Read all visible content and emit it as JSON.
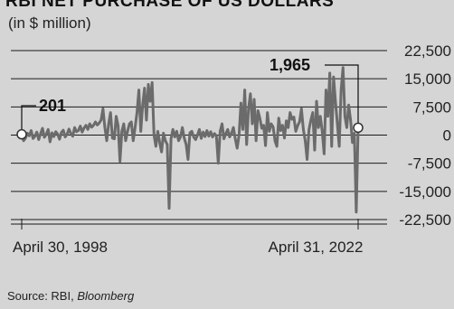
{
  "chart_data": {
    "type": "line",
    "title": "RBI NET PURCHASE OF US DOLLARS",
    "subtitle": "(in $ million)",
    "x_tick_labels": [
      "April 30, 1998",
      "April 31, 2022"
    ],
    "y_tick_labels": [
      "22,500",
      "15,000",
      "7,500",
      "0",
      "-7,500",
      "-15,000",
      "-22,500"
    ],
    "y_ticks": [
      22500,
      15000,
      7500,
      0,
      -7500,
      -15000,
      -22500
    ],
    "ylim": [
      -22500,
      22500
    ],
    "grid": true,
    "color": "#6b6b6b",
    "annotations": [
      {
        "label": "201",
        "value": 201,
        "point": "first"
      },
      {
        "label": "1,965",
        "value": 1965,
        "point": "last"
      }
    ],
    "series": [
      {
        "values": [
          201,
          -1500,
          -800,
          500,
          -200,
          1200,
          -900,
          -300,
          800,
          -1200,
          400,
          1800,
          -600,
          200,
          1500,
          -1800,
          600,
          -400,
          900,
          300,
          -1100,
          700,
          1300,
          -500,
          200,
          1600,
          400,
          -300,
          2000,
          900,
          1200,
          2400,
          800,
          1900,
          2600,
          1500,
          3000,
          2100,
          2600,
          3500,
          2700,
          3200,
          4000,
          7000,
          2000,
          -1500,
          3000,
          6000,
          -800,
          -1000,
          5000,
          2500,
          -7000,
          1000,
          3000,
          -1500,
          1000,
          3000,
          3500,
          -1500,
          2000,
          6000,
          12000,
          1000,
          8000,
          12500,
          4000,
          13500,
          9000,
          14000,
          0,
          -3000,
          1000,
          -2000,
          -4500,
          500,
          -1500,
          -2500,
          -19500,
          -1000,
          1500,
          -500,
          1000,
          -1500,
          -500,
          2000,
          -800,
          -2500,
          -6500,
          600,
          1000,
          -500,
          -1200,
          0,
          1500,
          -900,
          800,
          -400,
          1200,
          -300,
          900,
          -500,
          400,
          -200,
          -7500,
          1000,
          3000,
          -1000,
          400,
          1500,
          -500,
          500,
          2000,
          -1000,
          -3500,
          0,
          8500,
          1500,
          12000,
          -2500,
          7000,
          11000,
          3000,
          9500,
          -1500,
          6500,
          4500,
          1800,
          2600,
          -2800,
          6000,
          1000,
          3000,
          2200,
          -1500,
          -3000,
          4500,
          1200,
          2600,
          -800,
          3800,
          2000,
          6000,
          4200,
          4800,
          1000,
          2500,
          3500,
          7000,
          1600,
          -1500,
          -6500,
          1500,
          4000,
          6000,
          -4000,
          9000,
          2000,
          5000,
          1000,
          -5000,
          12000,
          5000,
          16500,
          -3000,
          15500,
          9000,
          3000,
          -3000,
          12000,
          18000,
          5000,
          2000,
          8000,
          4000,
          -2000,
          500,
          -20500,
          1965
        ]
      }
    ]
  }
}
